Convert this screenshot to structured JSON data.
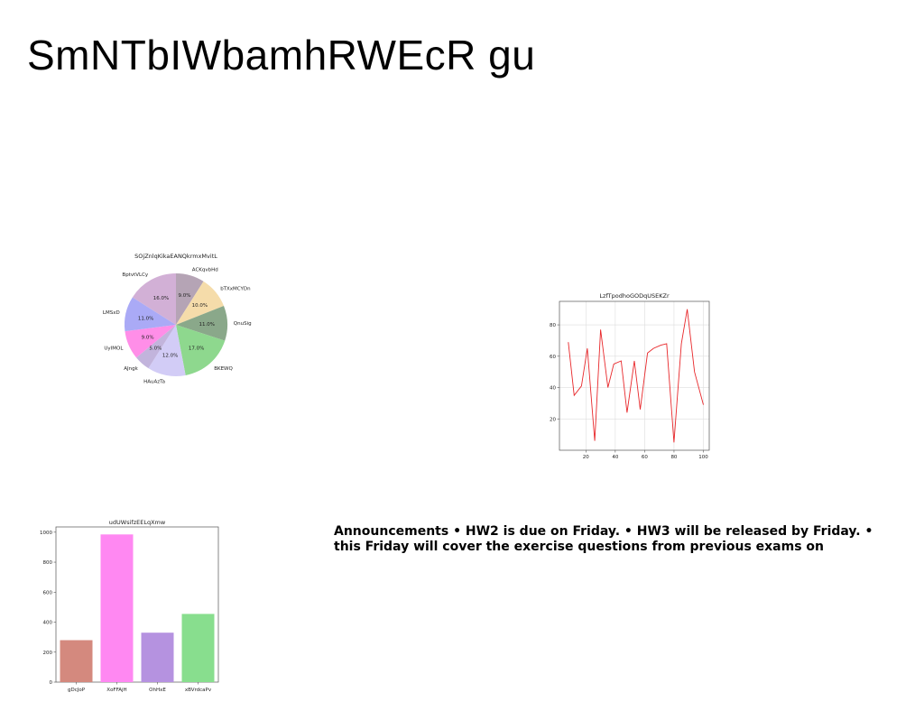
{
  "slide": {
    "title": "SmNTbIWbamhRWEcR gu",
    "announcement": "Announcements • HW2 is due on Friday. • HW3 will be released by Friday. • this Friday will cover the exercise questions from previous exams on"
  },
  "chart_data": [
    {
      "type": "pie",
      "title": "SOjZnlqKikaEANQkrmxMvitL",
      "labels": [
        "ACKqvbHd",
        "bTXxMCYDn",
        "QnuSig",
        "BKEWQ",
        "HAuAzTa",
        "AJngk",
        "UyIMOL",
        "LMSxD",
        "BptvtVLCy"
      ],
      "values": [
        9.0,
        10.0,
        11.0,
        17.0,
        12.0,
        5.0,
        9.0,
        11.0,
        16.0
      ],
      "value_labels": [
        "9.0%",
        "10.0%",
        "11.0%",
        "17.0%",
        "12.0%",
        "5.0%",
        "9.0%",
        "11.0%",
        "16.0%"
      ],
      "colors": [
        "#b5a4b5",
        "#f5dcaa",
        "#8aa88a",
        "#8ed88e",
        "#d2ccf6",
        "#c2b4dc",
        "#ff8ee8",
        "#aaaaf6",
        "#d2b0d6"
      ],
      "start_angle_deg": 90,
      "direction": "clockwise"
    },
    {
      "type": "line",
      "title": "LzfTpodhoGODqUSEKZr",
      "x": [
        8,
        12,
        17,
        21,
        26,
        30,
        35,
        39,
        44,
        48,
        53,
        57,
        62,
        66,
        71,
        75,
        80,
        85,
        89,
        94,
        100
      ],
      "series": [
        {
          "values": [
            69,
            35,
            41,
            65,
            6,
            77,
            40,
            55,
            57,
            24,
            57,
            26,
            62,
            65,
            67,
            68,
            5,
            68,
            90,
            50,
            29
          ],
          "color": "#e8272a"
        }
      ],
      "xticks": [
        20,
        40,
        60,
        80,
        100
      ],
      "yticks": [
        20,
        40,
        60,
        80
      ],
      "xlim": [
        2,
        104
      ],
      "ylim": [
        0,
        95
      ],
      "grid": true
    },
    {
      "type": "bar",
      "title": "udUWsifzEELqXmw",
      "categories": [
        "gDcJoP",
        "XoFFAjH",
        "OhHxE",
        "xBVrdcaPv"
      ],
      "values": [
        280,
        985,
        330,
        455
      ],
      "colors": [
        "#d4897e",
        "#ff88f2",
        "#b592e0",
        "#88de8e"
      ],
      "yticks": [
        0,
        200,
        400,
        600,
        800,
        1000
      ],
      "ylim": [
        0,
        1035
      ],
      "grid": false
    }
  ]
}
